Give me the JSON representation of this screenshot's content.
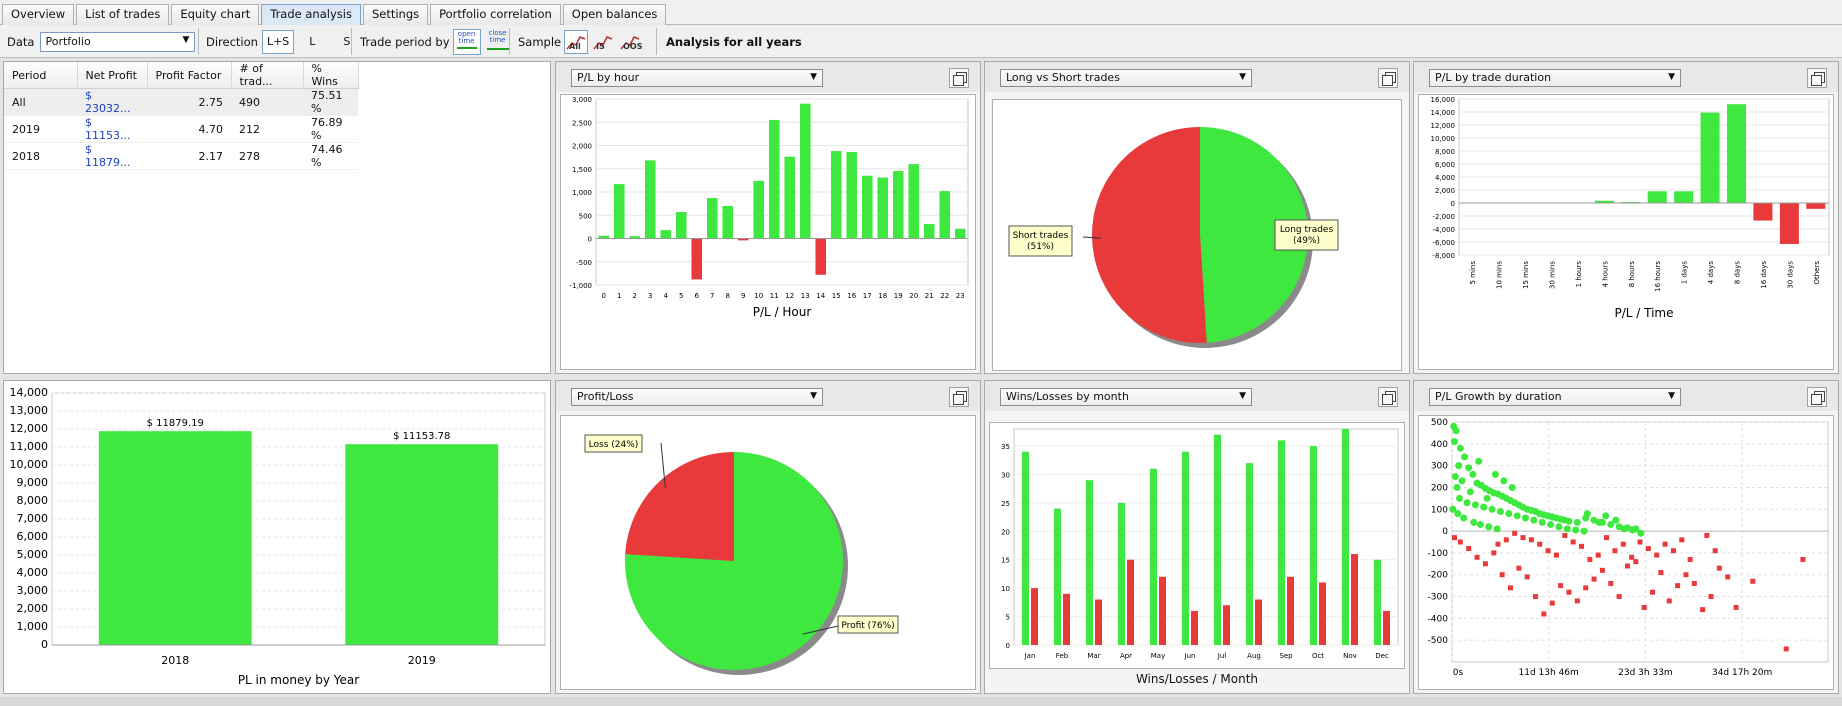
{
  "tabs": [
    {
      "label": "Overview",
      "active": false
    },
    {
      "label": "List of trades",
      "active": false
    },
    {
      "label": "Equity chart",
      "active": false
    },
    {
      "label": "Trade analysis",
      "active": true
    },
    {
      "label": "Settings",
      "active": false
    },
    {
      "label": "Portfolio correlation",
      "active": false
    },
    {
      "label": "Open balances",
      "active": false
    }
  ],
  "toolbar": {
    "data_label": "Data",
    "data_value": "Portfolio",
    "direction_label": "Direction",
    "direction_options": [
      "L+S",
      "L",
      "S"
    ],
    "trade_period_label": "Trade period by",
    "open_time_label": "open time",
    "close_time_label": "close time",
    "sample_label": "Sample",
    "sample_options": [
      "All",
      "IS",
      "OOS"
    ],
    "analysis_title": "Analysis for all years"
  },
  "table": {
    "columns": [
      "Period",
      "Net Profit",
      "Profit Factor",
      "# of trad...",
      "% Wins"
    ],
    "rows": [
      {
        "period": "All",
        "net_profit": "$ 23032...",
        "profit_factor": "2.75",
        "trades": "490",
        "wins": "75.51 %"
      },
      {
        "period": "2019",
        "net_profit": "$ 11153...",
        "profit_factor": "4.70",
        "trades": "212",
        "wins": "76.89 %"
      },
      {
        "period": "2018",
        "net_profit": "$ 11879...",
        "profit_factor": "2.17",
        "trades": "278",
        "wins": "74.46 %"
      }
    ]
  },
  "colors": {
    "profit": "#3ee83e",
    "loss": "#e83a3a"
  },
  "charts": {
    "hour": {
      "selector": "P/L by hour",
      "type": "bar",
      "categories": [
        "0",
        "1",
        "2",
        "3",
        "4",
        "5",
        "6",
        "7",
        "8",
        "9",
        "10",
        "11",
        "12",
        "13",
        "14",
        "15",
        "16",
        "17",
        "18",
        "19",
        "20",
        "21",
        "22",
        "23"
      ],
      "values": [
        60,
        1170,
        50,
        1680,
        180,
        570,
        -880,
        870,
        700,
        -40,
        1240,
        2550,
        1760,
        2900,
        -780,
        1880,
        1860,
        1350,
        1310,
        1450,
        1600,
        310,
        1020,
        210
      ],
      "ylim": [
        -1000,
        3000
      ],
      "yticks": [
        -1000,
        -500,
        0,
        500,
        1000,
        1500,
        2000,
        2500,
        3000
      ],
      "ytick_labels": [
        "-1,000",
        "-500",
        "0",
        "500",
        "1,000",
        "1,500",
        "2,000",
        "2,500",
        "3,000"
      ],
      "xlabel": "P/L / Hour"
    },
    "longshort": {
      "selector": "Long vs Short trades",
      "type": "pie",
      "slices": [
        {
          "label": "Long trades",
          "value": 49,
          "callout": "Long trades (49%)"
        },
        {
          "label": "Short trades",
          "value": 51,
          "callout": "Short trades (51%)"
        }
      ]
    },
    "duration": {
      "selector": "P/L by trade duration",
      "type": "bar",
      "categories": [
        "5 mins",
        "10 mins",
        "15 mins",
        "30 mins",
        "1 hours",
        "4 hours",
        "8 hours",
        "16 hours",
        "1 days",
        "4 days",
        "8 days",
        "16 days",
        "30 days",
        "Others"
      ],
      "values": [
        0,
        0,
        0,
        0,
        0,
        350,
        150,
        1800,
        1800,
        13900,
        15200,
        -2700,
        -6300,
        -900
      ],
      "ylim": [
        -8000,
        16000
      ],
      "yticks": [
        -8000,
        -6000,
        -4000,
        -2000,
        0,
        2000,
        4000,
        6000,
        8000,
        10000,
        12000,
        14000,
        16000
      ],
      "ytick_labels": [
        "-8,000",
        "-6,000",
        "-4,000",
        "-2,000",
        "0",
        "2,000",
        "4,000",
        "6,000",
        "8,000",
        "10,000",
        "12,000",
        "14,000",
        "16,000"
      ],
      "xlabel": "P/L / Time"
    },
    "year": {
      "type": "bar",
      "categories": [
        "2018",
        "2019"
      ],
      "values": [
        11879.19,
        11153.78
      ],
      "value_labels": [
        "$ 11879.19",
        "$ 11153.78"
      ],
      "ylim": [
        0,
        14000
      ],
      "yticks": [
        0,
        1000,
        2000,
        3000,
        4000,
        5000,
        6000,
        7000,
        8000,
        9000,
        10000,
        11000,
        12000,
        13000,
        14000
      ],
      "ytick_labels": [
        "0",
        "1,000",
        "2,000",
        "3,000",
        "4,000",
        "5,000",
        "6,000",
        "7,000",
        "8,000",
        "9,000",
        "10,000",
        "11,000",
        "12,000",
        "13,000",
        "14,000"
      ],
      "xlabel": "PL in money by Year"
    },
    "profitloss": {
      "selector": "Profit/Loss",
      "type": "pie",
      "slices": [
        {
          "label": "Profit",
          "value": 76,
          "callout": "Profit (76%)"
        },
        {
          "label": "Loss",
          "value": 24,
          "callout": "Loss (24%)"
        }
      ]
    },
    "winslosses": {
      "selector": "Wins/Losses by month",
      "type": "bar",
      "categories": [
        "Jan",
        "Feb",
        "Mar",
        "Apr",
        "May",
        "Jun",
        "Jul",
        "Aug",
        "Sep",
        "Oct",
        "Nov",
        "Dec"
      ],
      "series": [
        {
          "name": "Wins",
          "values": [
            34,
            24,
            29,
            25,
            31,
            34,
            37,
            32,
            36,
            35,
            38,
            15
          ]
        },
        {
          "name": "Losses",
          "values": [
            10,
            9,
            8,
            15,
            12,
            6,
            7,
            8,
            12,
            11,
            16,
            6
          ]
        }
      ],
      "ylim": [
        0,
        38
      ],
      "yticks": [
        0,
        5,
        10,
        15,
        20,
        25,
        30,
        35
      ],
      "ytick_labels": [
        "0",
        "5",
        "10",
        "15",
        "20",
        "25",
        "30",
        "35"
      ],
      "xlabel": "Wins/Losses / Month"
    },
    "growth": {
      "selector": "P/L Growth by duration",
      "type": "scatter",
      "ylim": [
        -600,
        500
      ],
      "yticks": [
        -500,
        -400,
        -300,
        -200,
        -100,
        0,
        100,
        200,
        300,
        400,
        500
      ],
      "ytick_labels": [
        "-500",
        "-400",
        "-300",
        "-200",
        "-100",
        "0",
        "100",
        "200",
        "300",
        "400",
        "500"
      ],
      "xlim": [
        0,
        45
      ],
      "xtick_labels": [
        "0s",
        "11d 13h 46m",
        "23d 3h 33m",
        "34d 17h 20m"
      ],
      "xtick_values": [
        0,
        11.57,
        23.15,
        34.72
      ],
      "wins": [
        [
          0.2,
          480
        ],
        [
          0.5,
          460
        ],
        [
          0.3,
          410
        ],
        [
          1,
          380
        ],
        [
          1.5,
          340
        ],
        [
          0.8,
          300
        ],
        [
          2,
          290
        ],
        [
          2.5,
          260
        ],
        [
          0.4,
          250
        ],
        [
          1.2,
          230
        ],
        [
          3,
          220
        ],
        [
          3.5,
          210
        ],
        [
          0.6,
          200
        ],
        [
          4,
          195
        ],
        [
          4.5,
          185
        ],
        [
          5,
          175
        ],
        [
          5.5,
          170
        ],
        [
          6,
          160
        ],
        [
          6.5,
          150
        ],
        [
          7,
          140
        ],
        [
          7.5,
          130
        ],
        [
          8,
          120
        ],
        [
          8.5,
          110
        ],
        [
          9,
          100
        ],
        [
          9.5,
          95
        ],
        [
          10,
          90
        ],
        [
          10.5,
          80
        ],
        [
          11,
          75
        ],
        [
          11.5,
          70
        ],
        [
          12,
          65
        ],
        [
          12.5,
          60
        ],
        [
          13,
          55
        ],
        [
          13.5,
          50
        ],
        [
          14,
          45
        ],
        [
          15,
          40
        ],
        [
          16,
          60
        ],
        [
          17,
          50
        ],
        [
          18,
          40
        ],
        [
          19,
          30
        ],
        [
          20,
          20
        ],
        [
          21,
          15
        ],
        [
          22,
          10
        ],
        [
          3.2,
          320
        ],
        [
          5.2,
          260
        ],
        [
          6.2,
          230
        ],
        [
          7.2,
          200
        ],
        [
          0.9,
          150
        ],
        [
          1.8,
          130
        ],
        [
          2.8,
          120
        ],
        [
          3.8,
          110
        ],
        [
          4.8,
          100
        ],
        [
          5.8,
          90
        ],
        [
          6.8,
          80
        ],
        [
          7.8,
          70
        ],
        [
          8.8,
          60
        ],
        [
          9.8,
          50
        ],
        [
          10.8,
          40
        ],
        [
          11.8,
          30
        ],
        [
          12.8,
          20
        ],
        [
          13.8,
          10
        ],
        [
          14.8,
          5
        ],
        [
          15.8,
          0
        ],
        [
          2.2,
          180
        ],
        [
          4.2,
          150
        ],
        [
          0.1,
          100
        ],
        [
          0.7,
          80
        ],
        [
          1.4,
          60
        ],
        [
          2.6,
          40
        ],
        [
          3.4,
          30
        ],
        [
          4.4,
          20
        ],
        [
          5.4,
          10
        ],
        [
          19.6,
          50
        ],
        [
          18.4,
          70
        ],
        [
          16.2,
          80
        ],
        [
          17.6,
          40
        ],
        [
          20.6,
          10
        ],
        [
          21.6,
          5
        ],
        [
          22.6,
          -10
        ]
      ],
      "losses": [
        [
          0.3,
          -30
        ],
        [
          1,
          -50
        ],
        [
          2,
          -80
        ],
        [
          3,
          -120
        ],
        [
          4,
          -150
        ],
        [
          5,
          -100
        ],
        [
          6,
          -200
        ],
        [
          7,
          -260
        ],
        [
          8,
          -170
        ],
        [
          9,
          -210
        ],
        [
          10,
          -300
        ],
        [
          11,
          -380
        ],
        [
          12,
          -330
        ],
        [
          13,
          -250
        ],
        [
          14,
          -280
        ],
        [
          15,
          -320
        ],
        [
          16,
          -260
        ],
        [
          17,
          -220
        ],
        [
          18,
          -180
        ],
        [
          19,
          -240
        ],
        [
          20,
          -300
        ],
        [
          21,
          -160
        ],
        [
          22,
          -140
        ],
        [
          23,
          -350
        ],
        [
          24,
          -280
        ],
        [
          25,
          -190
        ],
        [
          26,
          -320
        ],
        [
          27,
          -250
        ],
        [
          28,
          -200
        ],
        [
          29,
          -240
        ],
        [
          30,
          -360
        ],
        [
          31,
          -300
        ],
        [
          32,
          -170
        ],
        [
          33,
          -210
        ],
        [
          34,
          -350
        ],
        [
          36,
          -230
        ],
        [
          42,
          -130
        ],
        [
          40,
          -540
        ],
        [
          9.5,
          -40
        ],
        [
          10.5,
          -60
        ],
        [
          11.5,
          -90
        ],
        [
          12.5,
          -110
        ],
        [
          13.5,
          -20
        ],
        [
          14.5,
          -50
        ],
        [
          15.5,
          -70
        ],
        [
          16.5,
          -130
        ],
        [
          17.5,
          -110
        ],
        [
          18.5,
          -30
        ],
        [
          19.5,
          -90
        ],
        [
          20.5,
          -60
        ],
        [
          21.5,
          -120
        ],
        [
          22.5,
          -50
        ],
        [
          23.5,
          -80
        ],
        [
          24.5,
          -110
        ],
        [
          25.5,
          -60
        ],
        [
          26.5,
          -90
        ],
        [
          27.5,
          -40
        ],
        [
          28.5,
          -130
        ],
        [
          30.5,
          -20
        ],
        [
          31.5,
          -90
        ],
        [
          7.5,
          -10
        ],
        [
          8.5,
          -30
        ],
        [
          6.5,
          -40
        ],
        [
          5.5,
          -60
        ]
      ]
    }
  }
}
